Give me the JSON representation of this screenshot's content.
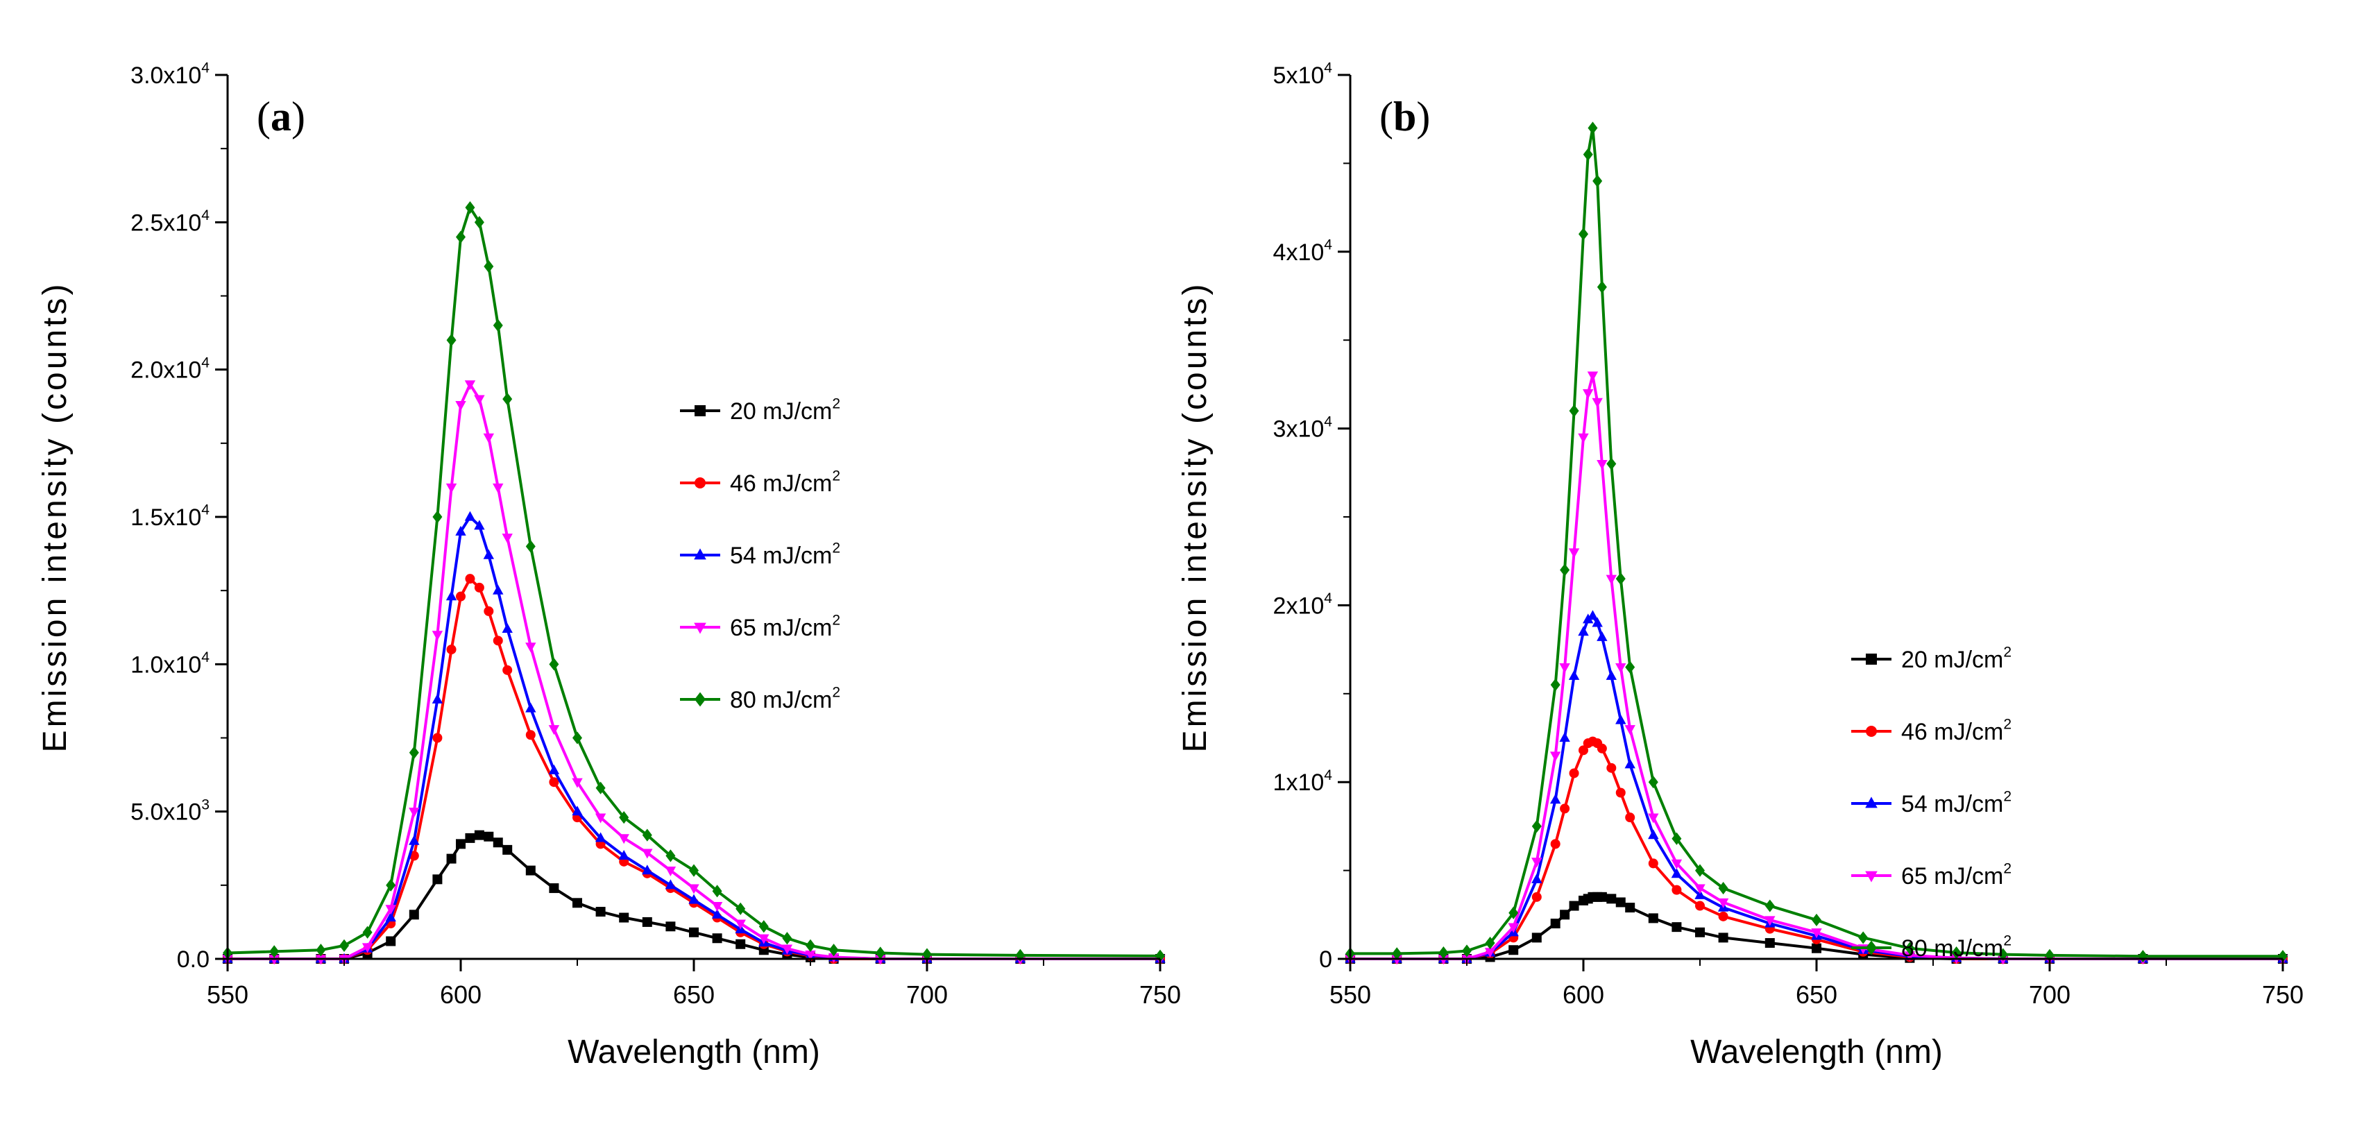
{
  "chart_data": [
    {
      "type": "line",
      "panel_label": "a",
      "title": "",
      "xlabel": "Wavelength (nm)",
      "ylabel": "Emission intensity (counts)",
      "xlim": [
        550,
        750
      ],
      "ylim": [
        0,
        30000
      ],
      "xticks": [
        550,
        600,
        650,
        700,
        750
      ],
      "xtick_labels": [
        "550",
        "600",
        "650",
        "700",
        "750"
      ],
      "yticks": [
        0,
        5000,
        10000,
        15000,
        20000,
        25000,
        30000
      ],
      "ytick_labels": [
        {
          "mant": "0.0",
          "exp": ""
        },
        {
          "mant": "5.0x10",
          "exp": "3"
        },
        {
          "mant": "1.0x10",
          "exp": "4"
        },
        {
          "mant": "1.5x10",
          "exp": "4"
        },
        {
          "mant": "2.0x10",
          "exp": "4"
        },
        {
          "mant": "2.5x10",
          "exp": "4"
        },
        {
          "mant": "3.0x10",
          "exp": "4"
        }
      ],
      "grid": false,
      "legend_position": "center-right",
      "x": [
        550,
        560,
        570,
        575,
        580,
        585,
        590,
        595,
        598,
        600,
        602,
        604,
        606,
        608,
        610,
        615,
        620,
        625,
        630,
        635,
        640,
        645,
        650,
        655,
        660,
        665,
        670,
        675,
        680,
        690,
        700,
        720,
        750
      ],
      "series": [
        {
          "name": "20 mJ/cm",
          "sup": "2",
          "color": "#000000",
          "marker": "square",
          "values": [
            0,
            0,
            0,
            0,
            200,
            600,
            1500,
            2700,
            3400,
            3900,
            4100,
            4200,
            4150,
            3950,
            3700,
            3000,
            2400,
            1900,
            1600,
            1400,
            1250,
            1100,
            900,
            700,
            500,
            300,
            150,
            50,
            0,
            0,
            0,
            0,
            0
          ]
        },
        {
          "name": "46 mJ/cm",
          "sup": "2",
          "color": "#ff0000",
          "marker": "circle",
          "values": [
            0,
            0,
            0,
            0,
            300,
            1200,
            3500,
            7500,
            10500,
            12300,
            12900,
            12600,
            11800,
            10800,
            9800,
            7600,
            6000,
            4800,
            3900,
            3300,
            2900,
            2400,
            1900,
            1400,
            900,
            500,
            250,
            100,
            0,
            0,
            0,
            0,
            0
          ]
        },
        {
          "name": "54 mJ/cm",
          "sup": "2",
          "color": "#0000ff",
          "marker": "triangle-up",
          "values": [
            0,
            0,
            0,
            0,
            350,
            1400,
            4000,
            8800,
            12300,
            14500,
            15000,
            14700,
            13700,
            12500,
            11200,
            8500,
            6400,
            5000,
            4100,
            3500,
            3000,
            2500,
            2000,
            1500,
            1000,
            550,
            280,
            120,
            50,
            0,
            0,
            0,
            0
          ]
        },
        {
          "name": "65 mJ/cm",
          "sup": "2",
          "color": "#ff00ff",
          "marker": "triangle-down",
          "values": [
            0,
            0,
            0,
            0,
            400,
            1700,
            5000,
            11000,
            16000,
            18800,
            19500,
            19000,
            17700,
            16000,
            14300,
            10600,
            7800,
            6000,
            4800,
            4100,
            3600,
            3000,
            2400,
            1800,
            1200,
            700,
            350,
            150,
            60,
            0,
            0,
            0,
            0
          ]
        },
        {
          "name": "80 mJ/cm",
          "sup": "2",
          "color": "#008000",
          "marker": "diamond",
          "values": [
            200,
            250,
            300,
            450,
            900,
            2500,
            7000,
            15000,
            21000,
            24500,
            25500,
            25000,
            23500,
            21500,
            19000,
            14000,
            10000,
            7500,
            5800,
            4800,
            4200,
            3500,
            3000,
            2300,
            1700,
            1100,
            700,
            450,
            300,
            200,
            150,
            120,
            100
          ]
        }
      ]
    },
    {
      "type": "line",
      "panel_label": "b",
      "title": "",
      "xlabel": "Wavelength (nm)",
      "ylabel": "Emission intensity (counts)",
      "xlim": [
        550,
        750
      ],
      "ylim": [
        0,
        50000
      ],
      "xticks": [
        550,
        600,
        650,
        700,
        750
      ],
      "xtick_labels": [
        "550",
        "600",
        "650",
        "700",
        "750"
      ],
      "yticks": [
        0,
        10000,
        20000,
        30000,
        40000,
        50000
      ],
      "ytick_labels": [
        {
          "mant": "0",
          "exp": ""
        },
        {
          "mant": "1x10",
          "exp": "4"
        },
        {
          "mant": "2x10",
          "exp": "4"
        },
        {
          "mant": "3x10",
          "exp": "4"
        },
        {
          "mant": "4x10",
          "exp": "4"
        },
        {
          "mant": "5x10",
          "exp": "4"
        }
      ],
      "grid": false,
      "legend_position": "center-right",
      "x": [
        550,
        560,
        570,
        575,
        580,
        585,
        590,
        594,
        596,
        598,
        600,
        601,
        602,
        603,
        604,
        606,
        608,
        610,
        615,
        620,
        625,
        630,
        640,
        650,
        660,
        670,
        680,
        690,
        700,
        720,
        750
      ],
      "series": [
        {
          "name": "20 mJ/cm",
          "sup": "2",
          "color": "#000000",
          "marker": "square",
          "values": [
            0,
            0,
            0,
            0,
            100,
            500,
            1200,
            2000,
            2500,
            3000,
            3300,
            3400,
            3500,
            3500,
            3500,
            3400,
            3200,
            2900,
            2300,
            1800,
            1500,
            1200,
            900,
            600,
            250,
            50,
            0,
            0,
            0,
            0,
            0
          ]
        },
        {
          "name": "46 mJ/cm",
          "sup": "2",
          "color": "#ff0000",
          "marker": "circle",
          "values": [
            0,
            0,
            0,
            0,
            300,
            1200,
            3500,
            6500,
            8500,
            10500,
            11800,
            12200,
            12300,
            12200,
            11900,
            10800,
            9400,
            8000,
            5400,
            3900,
            3000,
            2400,
            1700,
            1100,
            400,
            100,
            0,
            0,
            0,
            0,
            0
          ]
        },
        {
          "name": "54 mJ/cm",
          "sup": "2",
          "color": "#0000ff",
          "marker": "triangle-up",
          "values": [
            0,
            0,
            0,
            0,
            350,
            1500,
            4500,
            9000,
            12500,
            16000,
            18500,
            19200,
            19400,
            19000,
            18200,
            16000,
            13500,
            11000,
            7000,
            4800,
            3600,
            2900,
            2000,
            1300,
            500,
            150,
            50,
            0,
            0,
            0,
            0
          ]
        },
        {
          "name": "65 mJ/cm",
          "sup": "2",
          "color": "#ff00ff",
          "marker": "triangle-down",
          "values": [
            0,
            0,
            0,
            0,
            400,
            1800,
            5500,
            11500,
            16500,
            23000,
            29500,
            32000,
            33000,
            31500,
            28000,
            21500,
            16500,
            13000,
            8000,
            5400,
            4000,
            3200,
            2200,
            1500,
            600,
            200,
            50,
            0,
            0,
            0,
            0
          ]
        },
        {
          "name": "80 mJ/cm",
          "sup": "2",
          "color": "#008000",
          "marker": "diamond",
          "values": [
            300,
            300,
            350,
            450,
            900,
            2600,
            7500,
            15500,
            22000,
            31000,
            41000,
            45500,
            47000,
            44000,
            38000,
            28000,
            21500,
            16500,
            10000,
            6800,
            5000,
            4000,
            3000,
            2200,
            1200,
            600,
            350,
            250,
            200,
            150,
            150
          ]
        }
      ]
    }
  ]
}
